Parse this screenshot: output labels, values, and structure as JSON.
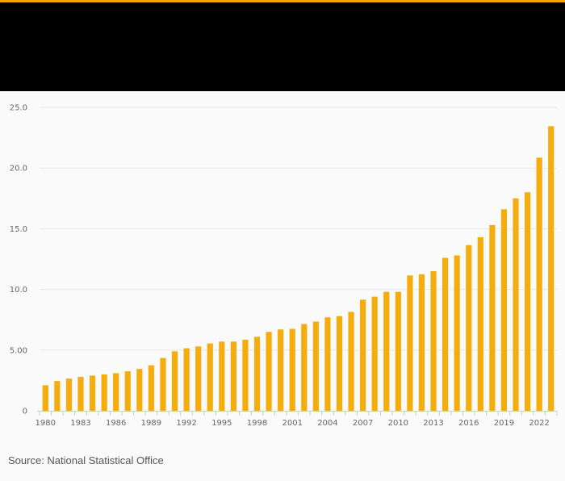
{
  "colors": {
    "accent": "#f5a800",
    "header_bg": "#000000",
    "bar": "#f5ac0d",
    "grid": "#e6e6e6",
    "axis": "#cccccc",
    "text": "#666666",
    "background": "#fafafa"
  },
  "footer": {
    "source": "Source: National Statistical Office"
  },
  "chart_data": {
    "type": "bar",
    "title": "",
    "xlabel": "",
    "ylabel": "",
    "ylim": [
      0,
      25
    ],
    "yticks": [
      0,
      5,
      10,
      15,
      20,
      25
    ],
    "ytick_labels": [
      "0",
      "5.00",
      "10.0",
      "15.0",
      "20.0",
      "25.0"
    ],
    "xtick_labels": [
      "1980",
      "1983",
      "1986",
      "1989",
      "1992",
      "1995",
      "1998",
      "2001",
      "2004",
      "2007",
      "2010",
      "2013",
      "2016",
      "2019",
      "2022"
    ],
    "grid": true,
    "legend": "none",
    "categories": [
      "1980",
      "1981",
      "1982",
      "1983",
      "1984",
      "1985",
      "1986",
      "1987",
      "1988",
      "1989",
      "1990",
      "1991",
      "1992",
      "1993",
      "1994",
      "1995",
      "1996",
      "1997",
      "1998",
      "1999",
      "2000",
      "2001",
      "2002",
      "2003",
      "2004",
      "2005",
      "2006",
      "2007",
      "2008",
      "2009",
      "2010",
      "2011",
      "2012",
      "2013",
      "2014",
      "2015",
      "2016",
      "2017",
      "2018",
      "2019",
      "2020",
      "2021",
      "2022",
      "2023"
    ],
    "values": [
      2.1,
      2.45,
      2.65,
      2.8,
      2.9,
      3.0,
      3.1,
      3.25,
      3.45,
      3.75,
      4.35,
      4.9,
      5.15,
      5.3,
      5.55,
      5.7,
      5.7,
      5.85,
      6.1,
      6.5,
      6.7,
      6.75,
      7.15,
      7.35,
      7.7,
      7.8,
      8.15,
      9.15,
      9.4,
      9.8,
      9.8,
      11.15,
      11.25,
      11.5,
      12.6,
      12.8,
      13.65,
      14.3,
      15.3,
      16.6,
      17.5,
      18.0,
      20.85,
      23.45
    ]
  }
}
